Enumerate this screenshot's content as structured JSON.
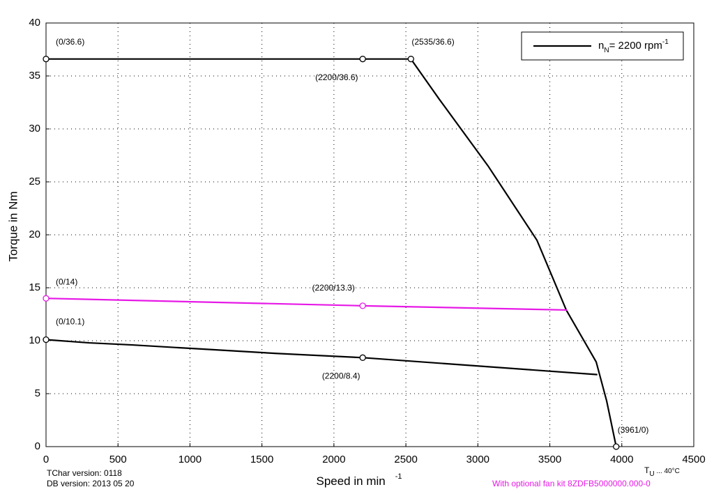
{
  "chart_data": {
    "type": "line",
    "xlabel": {
      "text": "Speed in min",
      "superscript": "-1"
    },
    "ylabel": "Torque in Nm",
    "xlim": [
      0,
      4500
    ],
    "xticks": [
      0,
      500,
      1000,
      1500,
      2000,
      2500,
      3000,
      3500,
      4000,
      4500
    ],
    "ylim": [
      0,
      40
    ],
    "yticks": [
      0,
      5,
      10,
      15,
      20,
      25,
      30,
      35,
      40
    ],
    "grid": true,
    "legend_position": "upper right",
    "legend": {
      "text": "n",
      "subscript": "N",
      "rest": "= 2200 rpm",
      "superscript": "-1"
    },
    "series": [
      {
        "color": "#000000",
        "x": [
          0,
          2200,
          2535,
          2732,
          3071,
          3410,
          3614,
          3822,
          3895,
          3961
        ],
        "values": [
          36.6,
          36.6,
          36.6,
          32.8,
          26.5,
          19.5,
          12.9,
          8.0,
          4.3,
          0
        ]
      },
      {
        "color": "#e619e6",
        "x": [
          0,
          2200,
          3620
        ],
        "values": [
          14,
          13.3,
          12.9
        ]
      },
      {
        "color": "#000000",
        "x": [
          0,
          300,
          600,
          1100,
          1600,
          2200,
          3830
        ],
        "values": [
          10.1,
          9.8,
          9.6,
          9.2,
          8.8,
          8.4,
          6.8
        ]
      }
    ],
    "annotations": [
      {
        "text": "(0/36.6)",
        "x": 0,
        "y": 36.6,
        "color": "#000000"
      },
      {
        "text": "(2200/36.6)",
        "x": 2200,
        "y": 36.6,
        "color": "#000000"
      },
      {
        "text": "(2535/36.6)",
        "x": 2535,
        "y": 36.6,
        "color": "#000000"
      },
      {
        "text": "(0/14)",
        "x": 0,
        "y": 14,
        "color": "#e619e6"
      },
      {
        "text": "(2200/13.3)",
        "x": 2200,
        "y": 13.3,
        "color": "#e619e6"
      },
      {
        "text": "(0/10.1)",
        "x": 0,
        "y": 10.1,
        "color": "#000000"
      },
      {
        "text": "(2200/8.4)",
        "x": 2200,
        "y": 8.4,
        "color": "#000000"
      },
      {
        "text": "(3961/0)",
        "x": 3961,
        "y": 0,
        "color": "#000000"
      }
    ],
    "footer": {
      "tchar_version": "TChar version: 0118",
      "db_version": "DB version: 2013 05 20",
      "ambient": {
        "text": "T",
        "subscript": "U",
        "rest": " ... 40°C"
      },
      "fan_kit": "With optional fan kit 8ZDFB5000000.000-0"
    }
  }
}
